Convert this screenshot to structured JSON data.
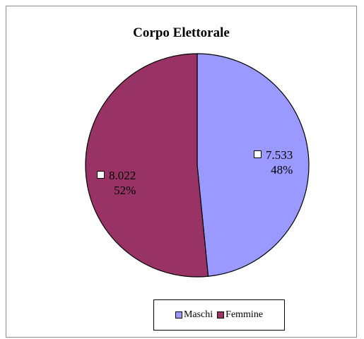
{
  "chart_data": {
    "type": "pie",
    "title": "Corpo Elettorale",
    "categories": [
      "Maschi",
      "Femmine"
    ],
    "values": [
      7533,
      8022
    ],
    "value_labels": [
      "7.533",
      "8.022"
    ],
    "percent_labels": [
      "48%",
      "52%"
    ],
    "colors": [
      "#9999ff",
      "#993366"
    ],
    "legend_position": "bottom"
  }
}
